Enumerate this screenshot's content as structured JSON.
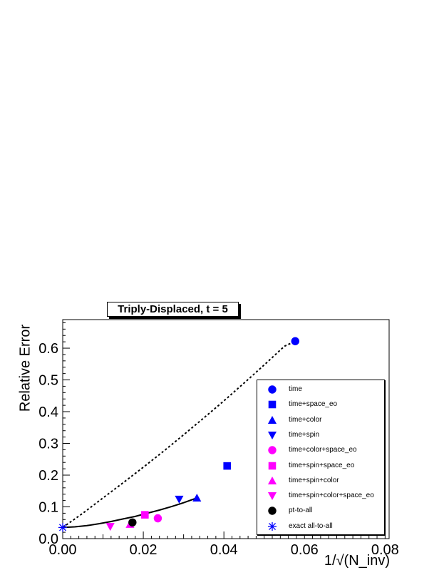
{
  "chart_data": {
    "type": "scatter",
    "title": "Triply-Displaced, t = 5",
    "xlabel": "1/√(N_inv)",
    "ylabel": "Relative Error",
    "xlim": [
      0,
      0.081
    ],
    "ylim": [
      0,
      0.69
    ],
    "x_ticks": [
      "0.00",
      "0.02",
      "0.04",
      "0.06",
      "0.08"
    ],
    "y_ticks": [
      "0.0",
      "0.1",
      "0.2",
      "0.3",
      "0.4",
      "0.5",
      "0.6"
    ],
    "grid": false,
    "legend_position": "bottom-right",
    "series": [
      {
        "name": "time",
        "marker": "circle",
        "color": "#0000ff",
        "x": 0.0577,
        "y": 0.622
      },
      {
        "name": "time+space_eo",
        "marker": "square",
        "color": "#0000ff",
        "x": 0.0408,
        "y": 0.229
      },
      {
        "name": "time+color",
        "marker": "triangle-up",
        "color": "#0000ff",
        "x": 0.0333,
        "y": 0.128
      },
      {
        "name": "time+spin",
        "marker": "triangle-down",
        "color": "#0000ff",
        "x": 0.0289,
        "y": 0.124
      },
      {
        "name": "time+color+space_eo",
        "marker": "circle",
        "color": "#ff00ff",
        "x": 0.0236,
        "y": 0.064
      },
      {
        "name": "time+spin+space_eo",
        "marker": "square",
        "color": "#ff00ff",
        "x": 0.0204,
        "y": 0.075
      },
      {
        "name": "time+spin+color",
        "marker": "triangle-up",
        "color": "#ff00ff",
        "x": 0.0167,
        "y": 0.045
      },
      {
        "name": "time+spin+color+space_eo",
        "marker": "triangle-down",
        "color": "#ff00ff",
        "x": 0.0118,
        "y": 0.038
      },
      {
        "name": "pt-to-all",
        "marker": "circle",
        "color": "#000000",
        "x": 0.0173,
        "y": 0.051
      },
      {
        "name": "exact all-to-all",
        "marker": "asterisk",
        "color": "#0000ff",
        "x": 0.0,
        "y": 0.035
      }
    ],
    "fit_curves": [
      {
        "style": "dotted",
        "color": "#000000",
        "x": [
          0,
          0.005,
          0.01,
          0.015,
          0.02,
          0.025,
          0.03,
          0.035,
          0.04,
          0.045,
          0.05,
          0.055,
          0.0577
        ],
        "y": [
          0.035,
          0.08,
          0.128,
          0.176,
          0.225,
          0.275,
          0.327,
          0.38,
          0.434,
          0.49,
          0.547,
          0.606,
          0.622
        ]
      },
      {
        "style": "solid",
        "color": "#000000",
        "x": [
          0,
          0.003,
          0.006,
          0.009,
          0.012,
          0.015,
          0.018,
          0.021,
          0.024,
          0.027,
          0.03,
          0.0333
        ],
        "y": [
          0.035,
          0.037,
          0.041,
          0.047,
          0.054,
          0.062,
          0.07,
          0.08,
          0.09,
          0.101,
          0.113,
          0.128
        ]
      }
    ]
  }
}
